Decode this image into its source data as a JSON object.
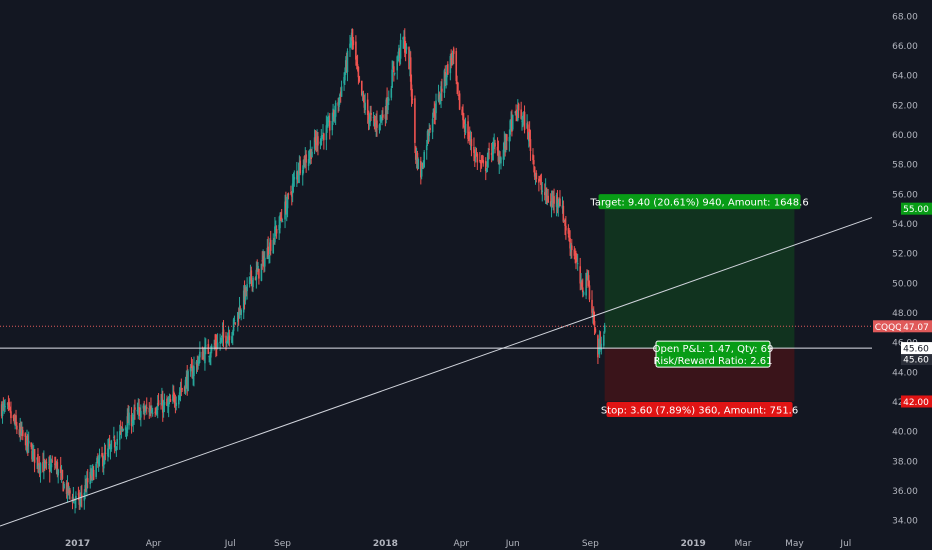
{
  "chart_data": {
    "type": "candlestick",
    "symbol": "CQQQ",
    "theme": "dark",
    "ylim": [
      33.2,
      68.8
    ],
    "y_ticks": [
      "34.00",
      "36.00",
      "38.00",
      "40.00",
      "42.00",
      "44.00",
      "46.00",
      "48.00",
      "50.00",
      "52.00",
      "54.00",
      "56.00",
      "58.00",
      "60.00",
      "62.00",
      "64.00",
      "66.00",
      "68.00"
    ],
    "x_ticks": [
      {
        "label": "2017",
        "date": "2017-01-01"
      },
      {
        "label": "Apr",
        "date": "2017-04-01"
      },
      {
        "label": "Jul",
        "date": "2017-07-01"
      },
      {
        "label": "Sep",
        "date": "2017-09-01"
      },
      {
        "label": "2018",
        "date": "2018-01-01"
      },
      {
        "label": "Apr",
        "date": "2018-04-01"
      },
      {
        "label": "Jun",
        "date": "2018-06-01"
      },
      {
        "label": "Sep",
        "date": "2018-09-01"
      },
      {
        "label": "2019",
        "date": "2019-01-01"
      },
      {
        "label": "Mar",
        "date": "2019-03-01"
      },
      {
        "label": "May",
        "date": "2019-05-01"
      },
      {
        "label": "Jul",
        "date": "2019-07-01"
      }
    ],
    "x_range": [
      "2016-10-01",
      "2019-08-01"
    ],
    "price_path": [
      [
        "2016-10-01",
        41.6
      ],
      [
        "2016-10-10",
        41.4
      ],
      [
        "2016-10-20",
        40.3
      ],
      [
        "2016-11-01",
        39.2
      ],
      [
        "2016-11-12",
        38.2
      ],
      [
        "2016-11-25",
        37.4
      ],
      [
        "2016-12-05",
        37.8
      ],
      [
        "2016-12-15",
        36.4
      ],
      [
        "2016-12-28",
        35.4
      ],
      [
        "2017-01-03",
        35.2
      ],
      [
        "2017-01-12",
        36.4
      ],
      [
        "2017-01-25",
        37.8
      ],
      [
        "2017-02-05",
        38.4
      ],
      [
        "2017-02-18",
        39.6
      ],
      [
        "2017-03-01",
        40.6
      ],
      [
        "2017-03-12",
        41.2
      ],
      [
        "2017-03-25",
        41.4
      ],
      [
        "2017-04-05",
        41.8
      ],
      [
        "2017-04-18",
        41.6
      ],
      [
        "2017-05-01",
        42.6
      ],
      [
        "2017-05-15",
        43.8
      ],
      [
        "2017-05-28",
        45.2
      ],
      [
        "2017-06-10",
        45.6
      ],
      [
        "2017-06-22",
        46.2
      ],
      [
        "2017-07-03",
        46.8
      ],
      [
        "2017-07-14",
        48.5
      ],
      [
        "2017-07-25",
        50.2
      ],
      [
        "2017-08-05",
        50.8
      ],
      [
        "2017-08-16",
        52.4
      ],
      [
        "2017-08-28",
        54.0
      ],
      [
        "2017-09-08",
        55.6
      ],
      [
        "2017-09-20",
        57.8
      ],
      [
        "2017-10-02",
        58.6
      ],
      [
        "2017-10-14",
        59.8
      ],
      [
        "2017-10-26",
        60.4
      ],
      [
        "2017-11-06",
        62.2
      ],
      [
        "2017-11-14",
        64.2
      ],
      [
        "2017-11-22",
        66.6
      ],
      [
        "2017-12-01",
        63.2
      ],
      [
        "2017-12-10",
        61.4
      ],
      [
        "2017-12-20",
        60.6
      ],
      [
        "2018-01-01",
        61.6
      ],
      [
        "2018-01-10",
        64.2
      ],
      [
        "2018-01-22",
        66.4
      ],
      [
        "2018-01-30",
        64.6
      ],
      [
        "2018-02-06",
        58.6
      ],
      [
        "2018-02-12",
        57.4
      ],
      [
        "2018-02-22",
        60.6
      ],
      [
        "2018-03-05",
        62.4
      ],
      [
        "2018-03-14",
        64.2
      ],
      [
        "2018-03-22",
        65.4
      ],
      [
        "2018-03-28",
        62.4
      ],
      [
        "2018-04-06",
        60.4
      ],
      [
        "2018-04-18",
        58.6
      ],
      [
        "2018-04-28",
        57.6
      ],
      [
        "2018-05-08",
        59.2
      ],
      [
        "2018-05-18",
        58.4
      ],
      [
        "2018-05-30",
        60.6
      ],
      [
        "2018-06-08",
        61.6
      ],
      [
        "2018-06-18",
        60.4
      ],
      [
        "2018-06-28",
        57.4
      ],
      [
        "2018-07-06",
        56.2
      ],
      [
        "2018-07-16",
        55.4
      ],
      [
        "2018-07-26",
        55.8
      ],
      [
        "2018-08-05",
        53.2
      ],
      [
        "2018-08-14",
        51.8
      ],
      [
        "2018-08-22",
        49.4
      ],
      [
        "2018-08-28",
        50.6
      ],
      [
        "2018-09-04",
        47.8
      ],
      [
        "2018-09-10",
        45.2
      ],
      [
        "2018-09-14",
        46.4
      ],
      [
        "2018-09-18",
        47.07
      ]
    ],
    "trendline": {
      "from": [
        "2016-10-01",
        33.6
      ],
      "to": [
        "2019-08-01",
        54.4
      ]
    },
    "horizontal_line": {
      "price": 45.6
    },
    "last_price_line": {
      "price": 47.07
    },
    "position": {
      "entry": 45.6,
      "target": 55.0,
      "stop": 42.0,
      "start_date": "2018-09-18",
      "end_date": "2019-05-01"
    },
    "labels": {
      "target_text": "Target: 9.40 (20.61%) 940, Amount: 1648.6",
      "stop_text": "Stop: 3.60 (7.89%) 360, Amount: 751.6",
      "pnl_line1": "Open P&L: 1.47, Qty: 69",
      "pnl_line2": "Risk/Reward Ratio: 2.61",
      "price_tag_symbol": "CQQQ",
      "price_tag_value": "47.07",
      "tag_target": "55.00",
      "tag_stop": "42.00",
      "tag_entry": "45.60",
      "tag_entry_overlap": "45.60"
    },
    "colors": {
      "background": "#131722",
      "up": "#26a69a",
      "down": "#ef5350",
      "axis_text": "#b2b5be",
      "profit_zone": "#11331f",
      "loss_zone": "#3a141a",
      "target_label": "#089c16",
      "stop_label": "#e01414",
      "last_price": "#e05a5a"
    }
  }
}
